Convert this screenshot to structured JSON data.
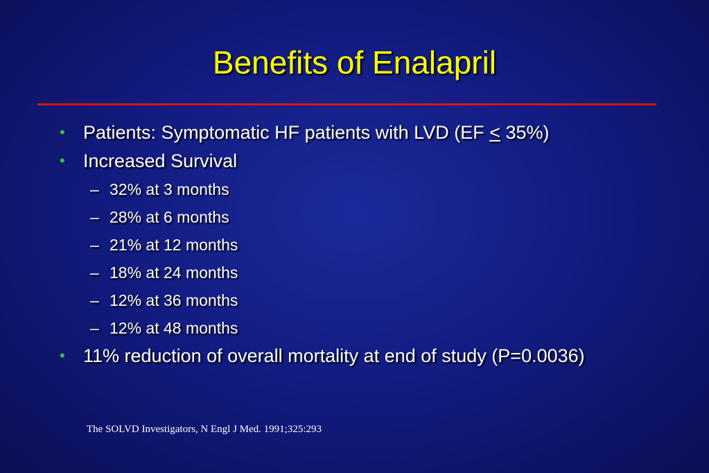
{
  "slide": {
    "title": "Benefits of Enalapril",
    "bullet_glyph": "•",
    "dash_glyph": "–",
    "bullets": [
      {
        "pre": "Patients:  Symptomatic HF patients with LVD (EF ",
        "underlined": "<",
        "post": " 35%)"
      },
      {
        "text": "Increased Survival"
      },
      {
        "text": "11% reduction of overall mortality at end of study (P=0.0036)"
      }
    ],
    "sub_bullets": [
      "32% at 3 months",
      "28% at 6 months",
      "21% at 12 months",
      "18% at 24 months",
      "12% at 36 months",
      "12% at 48 months"
    ],
    "citation": "The SOLVD Investigators, N Engl J Med. 1991;325:293"
  },
  "colors": {
    "title": "#ffff00",
    "rule": "#dd1111",
    "bullet": "#33cc33",
    "text": "#ffffff",
    "background": "#121c82"
  }
}
